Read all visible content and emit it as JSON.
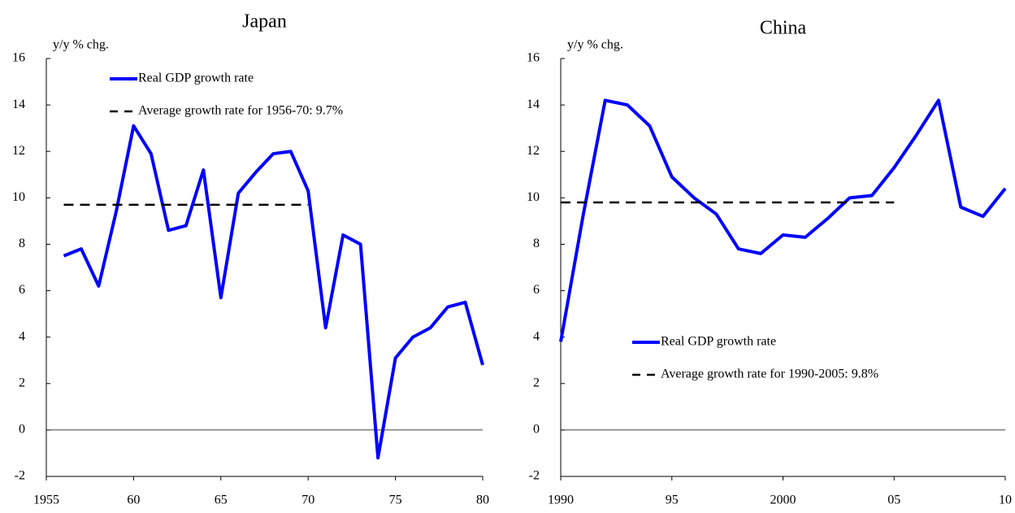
{
  "chart_data": [
    {
      "type": "line",
      "title": "Japan",
      "y_label": "y/y % chg.",
      "x": [
        1956,
        1957,
        1958,
        1959,
        1960,
        1961,
        1962,
        1963,
        1964,
        1965,
        1966,
        1967,
        1968,
        1969,
        1970,
        1971,
        1972,
        1973,
        1974,
        1975,
        1976,
        1977,
        1978,
        1979,
        1980
      ],
      "series": [
        {
          "name": "Real GDP growth rate",
          "color": "#0000ff",
          "dash": false,
          "values": [
            7.5,
            7.8,
            6.2,
            9.4,
            13.1,
            11.9,
            8.6,
            8.8,
            11.2,
            5.7,
            10.2,
            11.1,
            11.9,
            12.0,
            10.3,
            4.4,
            8.4,
            8.0,
            -1.2,
            3.1,
            4.0,
            4.4,
            5.3,
            5.5,
            2.8
          ]
        },
        {
          "name": "Average growth rate for 1956-70: 9.7%",
          "color": "#000000",
          "dash": true,
          "values": [
            9.7,
            9.7,
            9.7,
            9.7,
            9.7,
            9.7,
            9.7,
            9.7,
            9.7,
            9.7,
            9.7,
            9.7,
            9.7,
            9.7,
            9.7,
            null,
            null,
            null,
            null,
            null,
            null,
            null,
            null,
            null,
            null
          ]
        }
      ],
      "xlim": [
        1955,
        1980
      ],
      "xticks": [
        1955,
        {
          "value": 1960,
          "label": "60"
        },
        {
          "value": 1965,
          "label": "65"
        },
        {
          "value": 1970,
          "label": "70"
        },
        {
          "value": 1975,
          "label": "75"
        },
        {
          "value": 1980,
          "label": "80"
        }
      ],
      "ylim": [
        -2,
        16
      ],
      "yticks": [
        -2,
        0,
        2,
        4,
        6,
        8,
        10,
        12,
        14,
        16
      ],
      "legend": "upper left"
    },
    {
      "type": "line",
      "title": "China",
      "y_label": "y/y % chg.",
      "x": [
        1990,
        1991,
        1992,
        1993,
        1994,
        1995,
        1996,
        1997,
        1998,
        1999,
        2000,
        2001,
        2002,
        2003,
        2004,
        2005,
        2006,
        2007,
        2008,
        2009,
        2010
      ],
      "series": [
        {
          "name": "Real GDP growth rate",
          "color": "#0000ff",
          "dash": false,
          "values": [
            3.8,
            9.2,
            14.2,
            14.0,
            13.1,
            10.9,
            10.0,
            9.3,
            7.8,
            7.6,
            8.4,
            8.3,
            9.1,
            10.0,
            10.1,
            11.3,
            12.7,
            14.2,
            9.6,
            9.2,
            10.4
          ]
        },
        {
          "name": "Average growth rate for 1990-2005: 9.8%",
          "color": "#000000",
          "dash": true,
          "values": [
            9.8,
            9.8,
            9.8,
            9.8,
            9.8,
            9.8,
            9.8,
            9.8,
            9.8,
            9.8,
            9.8,
            9.8,
            9.8,
            9.8,
            9.8,
            9.8,
            null,
            null,
            null,
            null,
            null
          ]
        }
      ],
      "xlim": [
        1990,
        2010
      ],
      "xticks": [
        1990,
        {
          "value": 1995,
          "label": "95"
        },
        2000,
        {
          "value": 2005,
          "label": "05"
        },
        {
          "value": 2010,
          "label": "10"
        }
      ],
      "ylim": [
        -2,
        16
      ],
      "yticks": [
        -2,
        0,
        2,
        4,
        6,
        8,
        10,
        12,
        14,
        16
      ],
      "legend": "lower left"
    }
  ]
}
